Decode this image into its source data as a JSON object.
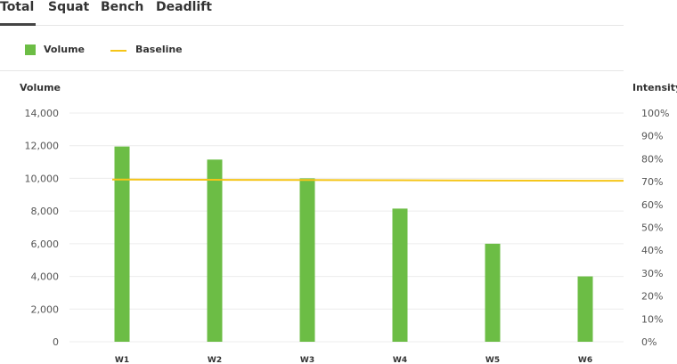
{
  "tabs": [
    {
      "label": "Total",
      "active": true
    },
    {
      "label": "Squat",
      "active": false
    },
    {
      "label": "Bench",
      "active": false
    },
    {
      "label": "Deadlift",
      "active": false
    }
  ],
  "legend": {
    "volume_label": "Volume",
    "baseline_label": "Baseline"
  },
  "colors": {
    "volume": "#6cbd45",
    "baseline": "#f5c518",
    "grid": "#ececec"
  },
  "chart_data": {
    "type": "bar",
    "categories": [
      "W1",
      "W2",
      "W3",
      "W4",
      "W5",
      "W6"
    ],
    "series": [
      {
        "name": "Volume",
        "type": "bar",
        "axis": "left",
        "values": [
          11950,
          11150,
          10000,
          8150,
          6000,
          4000
        ]
      },
      {
        "name": "Baseline",
        "type": "line",
        "axis": "right",
        "values": [
          70.9,
          70.8,
          70.7,
          70.6,
          70.5,
          70.4
        ]
      }
    ],
    "ylabel": "Volume",
    "ylabel_right": "Intensity",
    "ylim": [
      0,
      14000
    ],
    "ylim_right": [
      0,
      100
    ],
    "yticks": [
      "14,000",
      "12,000",
      "10,000",
      "8,000",
      "6,000",
      "4,000",
      "2,000",
      "0"
    ],
    "yticks_right": [
      "100%",
      "90%",
      "80%",
      "70%",
      "60%",
      "50%",
      "40%",
      "30%",
      "20%",
      "10%",
      "0%"
    ],
    "grid": true,
    "legend_position": "top-left"
  }
}
